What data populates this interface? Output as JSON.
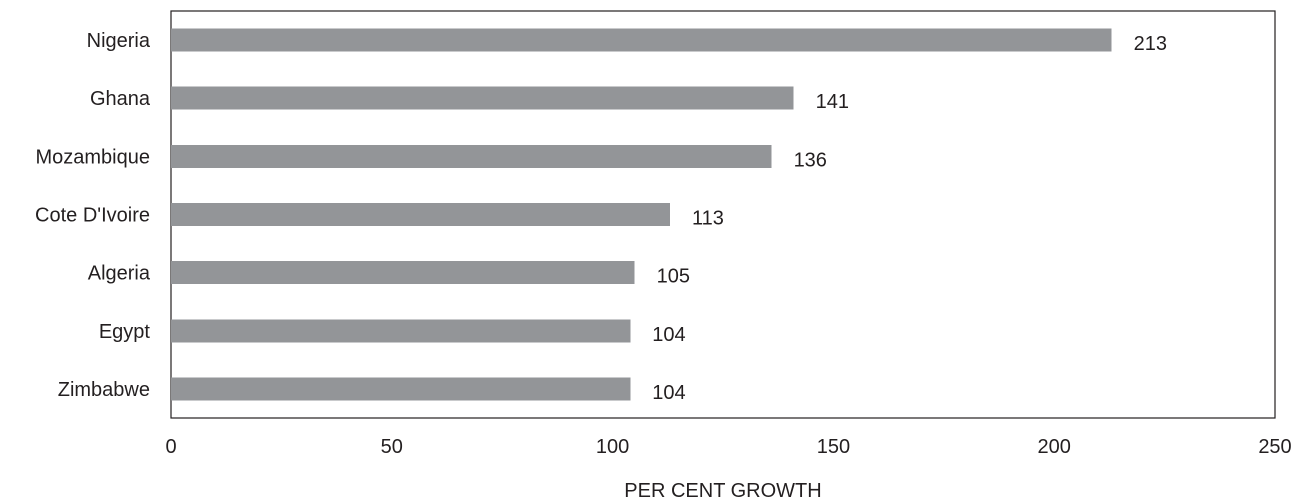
{
  "chart_data": {
    "type": "bar",
    "orientation": "horizontal",
    "title": "",
    "xlabel": "PER CENT GROWTH",
    "ylabel": "",
    "categories": [
      "Nigeria",
      "Ghana",
      "Mozambique",
      "Cote D'Ivoire",
      "Algeria",
      "Egypt",
      "Zimbabwe"
    ],
    "values": [
      213,
      141,
      136,
      113,
      105,
      104,
      104
    ],
    "data_labels": [
      "213",
      "141",
      "136",
      "113",
      "105",
      "104",
      "104"
    ],
    "xlim": [
      0,
      250
    ],
    "x_ticks": [
      0,
      50,
      100,
      150,
      200,
      250
    ],
    "x_tick_labels": [
      "0",
      "50",
      "100",
      "150",
      "200",
      "250"
    ],
    "grid": false,
    "legend": "none",
    "bar_color": "#939598",
    "text_color": "#231f20"
  }
}
